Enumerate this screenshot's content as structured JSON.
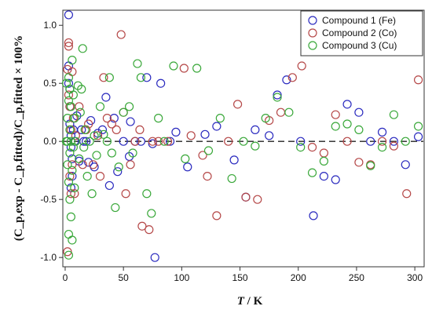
{
  "chart_data": {
    "type": "scatter",
    "title": "",
    "xlabel": {
      "italic": "T",
      "rest": " / K"
    },
    "ylabel": "(C_p,exp - C_p,fitted)/C_p,fitted × 100%",
    "xlim": [
      -2,
      308
    ],
    "ylim": [
      -1.08,
      1.13
    ],
    "xticks": [
      0,
      50,
      100,
      150,
      200,
      250,
      300
    ],
    "yticks": [
      -1.0,
      -0.5,
      0.0,
      0.5,
      1.0
    ],
    "ytick_labels": [
      "-1.0",
      "-0.5",
      "0.0",
      "0.5",
      "1.0"
    ],
    "legend_position": "top-right",
    "reference_line": {
      "y": 0,
      "style": "dashed"
    },
    "series": [
      {
        "name": "Compound 1 (Fe)",
        "color": "#2b2bbf",
        "points": [
          [
            3,
            1.09
          ],
          [
            3,
            0.65
          ],
          [
            3,
            0.5
          ],
          [
            4,
            0.3
          ],
          [
            4,
            0.15
          ],
          [
            5,
            0.05
          ],
          [
            5,
            -0.05
          ],
          [
            6,
            -0.15
          ],
          [
            6,
            -0.3
          ],
          [
            4,
            0.45
          ],
          [
            5,
            -0.4
          ],
          [
            7,
            0.1
          ],
          [
            8,
            0.0
          ],
          [
            10,
            0.22
          ],
          [
            12,
            -0.17
          ],
          [
            14,
            0.1
          ],
          [
            16,
            0.0
          ],
          [
            18,
            0.0
          ],
          [
            20,
            -0.18
          ],
          [
            22,
            0.18
          ],
          [
            25,
            -0.22
          ],
          [
            28,
            0.07
          ],
          [
            32,
            0.1
          ],
          [
            35,
            0.38
          ],
          [
            38,
            -0.38
          ],
          [
            42,
            0.2
          ],
          [
            45,
            -0.26
          ],
          [
            50,
            0.0
          ],
          [
            55,
            -0.13
          ],
          [
            56,
            0.17
          ],
          [
            60,
            0.0
          ],
          [
            65,
            0.0
          ],
          [
            70,
            0.55
          ],
          [
            75,
            -0.02
          ],
          [
            77,
            -1.0
          ],
          [
            82,
            0.5
          ],
          [
            90,
            0.0
          ],
          [
            95,
            0.08
          ],
          [
            105,
            -0.22
          ],
          [
            120,
            0.06
          ],
          [
            130,
            0.13
          ],
          [
            145,
            -0.16
          ],
          [
            155,
            -0.48
          ],
          [
            163,
            0.1
          ],
          [
            175,
            0.05
          ],
          [
            182,
            0.4
          ],
          [
            190,
            0.53
          ],
          [
            202,
            0.0
          ],
          [
            213,
            -0.64
          ],
          [
            222,
            -0.3
          ],
          [
            232,
            -0.33
          ],
          [
            242,
            0.32
          ],
          [
            252,
            0.25
          ],
          [
            262,
            0.0
          ],
          [
            272,
            0.08
          ],
          [
            282,
            0.0
          ],
          [
            292,
            -0.2
          ],
          [
            303,
            0.04
          ]
        ]
      },
      {
        "name": "Compound 2 (Co)",
        "color": "#b54848",
        "points": [
          [
            2,
            0.62
          ],
          [
            2,
            -0.95
          ],
          [
            3,
            0.85
          ],
          [
            3,
            0.82
          ],
          [
            3,
            0.4
          ],
          [
            4,
            0.3
          ],
          [
            4,
            -0.3
          ],
          [
            5,
            -0.45
          ],
          [
            5,
            0.1
          ],
          [
            6,
            0.6
          ],
          [
            6,
            -0.2
          ],
          [
            7,
            0.2
          ],
          [
            8,
            -0.45
          ],
          [
            9,
            0.05
          ],
          [
            12,
            0.3
          ],
          [
            15,
            -0.2
          ],
          [
            18,
            0.1
          ],
          [
            20,
            0.15
          ],
          [
            24,
            -0.2
          ],
          [
            28,
            0.05
          ],
          [
            30,
            -0.3
          ],
          [
            33,
            0.55
          ],
          [
            36,
            0.2
          ],
          [
            40,
            0.15
          ],
          [
            44,
            0.1
          ],
          [
            48,
            0.92
          ],
          [
            50,
            0.25
          ],
          [
            52,
            -0.45
          ],
          [
            56,
            -0.2
          ],
          [
            60,
            0.0
          ],
          [
            64,
            0.1
          ],
          [
            66,
            -0.73
          ],
          [
            72,
            -0.76
          ],
          [
            75,
            0.0
          ],
          [
            80,
            0.0
          ],
          [
            88,
            0.0
          ],
          [
            102,
            0.63
          ],
          [
            108,
            0.05
          ],
          [
            118,
            -0.12
          ],
          [
            122,
            -0.3
          ],
          [
            130,
            -0.64
          ],
          [
            140,
            0.0
          ],
          [
            148,
            0.32
          ],
          [
            155,
            -0.48
          ],
          [
            165,
            -0.5
          ],
          [
            175,
            0.18
          ],
          [
            185,
            0.25
          ],
          [
            195,
            0.55
          ],
          [
            203,
            0.65
          ],
          [
            212,
            -0.05
          ],
          [
            222,
            -0.1
          ],
          [
            232,
            0.23
          ],
          [
            242,
            0.0
          ],
          [
            252,
            -0.18
          ],
          [
            262,
            -0.2
          ],
          [
            272,
            0.0
          ],
          [
            282,
            -0.04
          ],
          [
            293,
            -0.45
          ],
          [
            303,
            0.53
          ]
        ]
      },
      {
        "name": "Compound 3 (Cu)",
        "color": "#3aa83a",
        "points": [
          [
            1,
            0.5
          ],
          [
            1,
            0.0
          ],
          [
            2,
            0.2
          ],
          [
            2,
            -0.2
          ],
          [
            2,
            0.0
          ],
          [
            3,
            0.35
          ],
          [
            3,
            -0.35
          ],
          [
            3,
            -0.8
          ],
          [
            3,
            -0.98
          ],
          [
            3,
            0.55
          ],
          [
            4,
            0.45
          ],
          [
            4,
            -0.1
          ],
          [
            4,
            0.1
          ],
          [
            4,
            -0.5
          ],
          [
            5,
            -0.65
          ],
          [
            5,
            0.3
          ],
          [
            5,
            0.0
          ],
          [
            6,
            -0.85
          ],
          [
            6,
            0.7
          ],
          [
            6,
            -0.25
          ],
          [
            7,
            0.4
          ],
          [
            7,
            -0.05
          ],
          [
            8,
            0.2
          ],
          [
            8,
            -0.4
          ],
          [
            9,
            0.0
          ],
          [
            11,
            0.48
          ],
          [
            12,
            -0.15
          ],
          [
            13,
            0.25
          ],
          [
            14,
            0.45
          ],
          [
            15,
            0.8
          ],
          [
            16,
            -0.05
          ],
          [
            17,
            0.1
          ],
          [
            19,
            -0.3
          ],
          [
            21,
            0.0
          ],
          [
            23,
            -0.45
          ],
          [
            25,
            0.05
          ],
          [
            27,
            -0.12
          ],
          [
            30,
            0.3
          ],
          [
            33,
            0.06
          ],
          [
            36,
            0.0
          ],
          [
            38,
            0.55
          ],
          [
            40,
            -0.1
          ],
          [
            43,
            -0.57
          ],
          [
            46,
            -0.22
          ],
          [
            50,
            0.25
          ],
          [
            55,
            0.3
          ],
          [
            58,
            -0.1
          ],
          [
            62,
            0.67
          ],
          [
            65,
            0.55
          ],
          [
            70,
            -0.45
          ],
          [
            74,
            -0.62
          ],
          [
            80,
            0.2
          ],
          [
            85,
            0.0
          ],
          [
            93,
            0.65
          ],
          [
            103,
            -0.15
          ],
          [
            113,
            0.63
          ],
          [
            123,
            -0.08
          ],
          [
            133,
            0.2
          ],
          [
            143,
            -0.32
          ],
          [
            153,
            0.0
          ],
          [
            163,
            -0.04
          ],
          [
            172,
            0.2
          ],
          [
            182,
            0.38
          ],
          [
            192,
            0.25
          ],
          [
            202,
            -0.05
          ],
          [
            212,
            -0.27
          ],
          [
            222,
            -0.17
          ],
          [
            232,
            0.13
          ],
          [
            242,
            0.15
          ],
          [
            252,
            0.1
          ],
          [
            262,
            -0.21
          ],
          [
            272,
            -0.05
          ],
          [
            282,
            0.23
          ],
          [
            292,
            0.0
          ],
          [
            303,
            0.13
          ]
        ]
      }
    ]
  }
}
